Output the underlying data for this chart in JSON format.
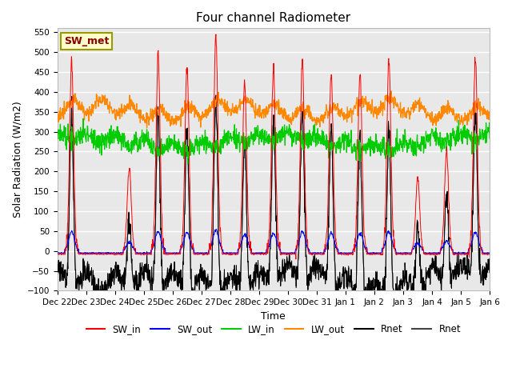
{
  "title": "Four channel Radiometer",
  "xlabel": "Time",
  "ylabel": "Solar Radiation (W/m2)",
  "ylim": [
    -100,
    560
  ],
  "yticks": [
    -100,
    -50,
    0,
    50,
    100,
    150,
    200,
    250,
    300,
    350,
    400,
    450,
    500,
    550
  ],
  "xtick_labels": [
    "Dec 22",
    "Dec 23",
    "Dec 24",
    "Dec 25",
    "Dec 26",
    "Dec 27",
    "Dec 28",
    "Dec 29",
    "Dec 30",
    "Dec 31",
    "Jan 1",
    "Jan 2",
    "Jan 3",
    "Jan 4",
    "Jan 5",
    "Jan 6"
  ],
  "annotation_text": "SW_met",
  "annotation_bg": "#ffffcc",
  "annotation_border": "#999900",
  "bg_color": "#e8e8e8",
  "grid_color": "#ffffff",
  "colors": {
    "SW_in": "#ff0000",
    "SW_out": "#0000ff",
    "LW_in": "#00cc00",
    "LW_out": "#ff8800",
    "Rnet_black": "#000000",
    "Rnet_dark": "#444444"
  },
  "legend_entries": [
    "SW_in",
    "SW_out",
    "LW_in",
    "LW_out",
    "Rnet",
    "Rnet"
  ],
  "day_peaks_SW": [
    480,
    0,
    210,
    490,
    460,
    535,
    420,
    455,
    480,
    450,
    445,
    480,
    185,
    250,
    480
  ],
  "n_days": 15,
  "pts_per_day": 96
}
